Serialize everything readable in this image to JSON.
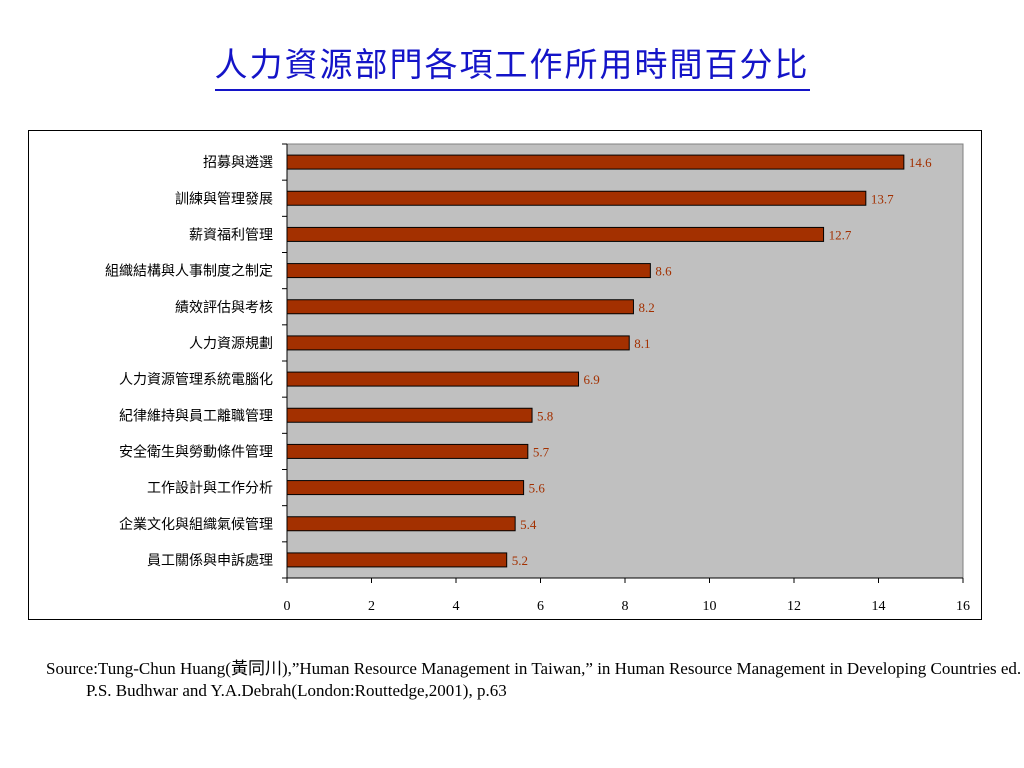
{
  "title": "人力資源部門各項工作所用時間百分比",
  "chart_data": {
    "type": "bar",
    "orientation": "horizontal",
    "categories": [
      "招募與遴選",
      "訓練與管理發展",
      "薪資福利管理",
      "組織結構與人事制度之制定",
      "績效評估與考核",
      "人力資源規劃",
      "人力資源管理系統電腦化",
      "紀律維持與員工離職管理",
      "安全衛生與勞動條件管理",
      "工作設計與工作分析",
      "企業文化與組織氣候管理",
      "員工關係與申訴處理"
    ],
    "values": [
      14.6,
      13.7,
      12.7,
      8.6,
      8.2,
      8.1,
      6.9,
      5.8,
      5.7,
      5.6,
      5.4,
      5.2
    ],
    "value_labels": [
      "14.6",
      "13.7",
      "12.7",
      "8.6",
      "8.2",
      "8.1",
      "6.9",
      "5.8",
      "5.7",
      "5.6",
      "5.4",
      "5.2"
    ],
    "xlim": [
      0,
      16
    ],
    "xticks": [
      "0",
      "2",
      "4",
      "6",
      "8",
      "10",
      "12",
      "14",
      "16"
    ],
    "bar_color": "#a33000",
    "label_color": "#a33000",
    "plot_background": "#c0c0c0",
    "grid": false,
    "legend": "none"
  },
  "source": "Source:Tung-Chun Huang(黃同川),”Human Resource Management in Taiwan,” in Human Resource Management in Developing Countries ed. P.S. Budhwar and Y.A.Debrah(London:Routtedge,2001), p.63"
}
